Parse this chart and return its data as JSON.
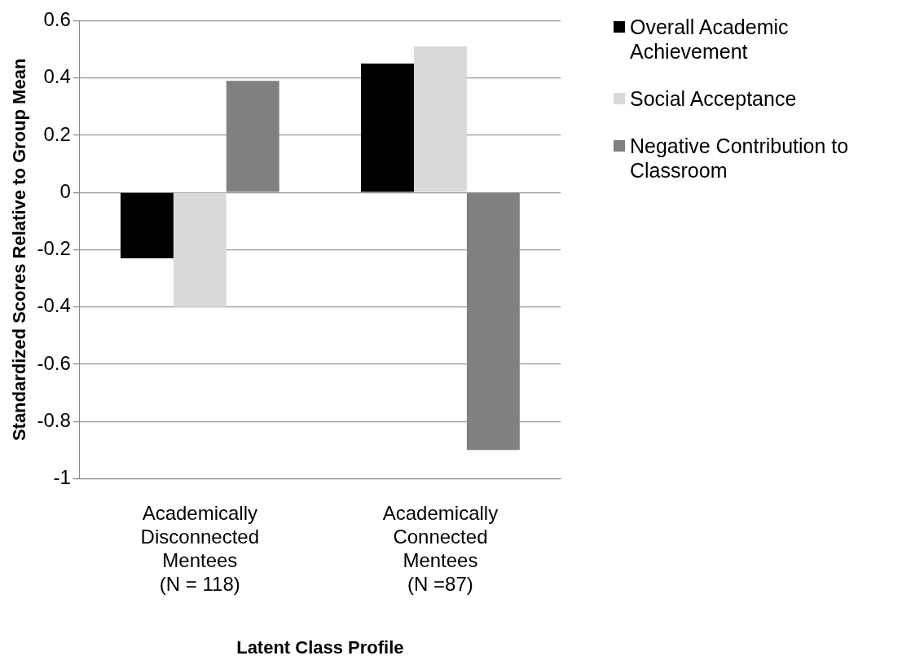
{
  "chart_data": {
    "type": "bar",
    "xlabel": "Latent Class Profile",
    "ylabel": "Standardized Scores Relative to Group Mean",
    "categories": [
      "Academically\nDisconnected\nMentees\n(N = 118)",
      "Academically\nConnected\nMentees\n(N =87)"
    ],
    "series": [
      {
        "name": "Overall Academic Achievement",
        "color": "#000000",
        "values": [
          -0.23,
          0.45
        ]
      },
      {
        "name": "Social Acceptance",
        "color": "#d9d9d9",
        "values": [
          -0.4,
          0.51
        ]
      },
      {
        "name": "Negative Contribution to Classroom",
        "color": "#808080",
        "values": [
          0.39,
          -0.9
        ]
      }
    ],
    "ylim": [
      -1,
      0.6
    ],
    "yticks": [
      -1,
      -0.8,
      -0.6,
      -0.4,
      -0.2,
      0,
      0.2,
      0.4,
      0.6
    ],
    "grid": "y",
    "legend": "right"
  }
}
